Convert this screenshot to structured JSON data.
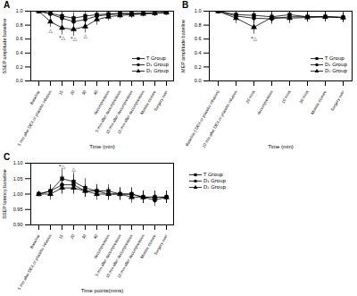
{
  "chart_data": [
    {
      "type": "line",
      "title": "A",
      "x_label": "Time (min)",
      "y_label": "SSEP amplitude baseline",
      "categories": [
        "Baseline",
        "5 min after DEX or placebo infusion",
        "15",
        "20",
        "30",
        "40",
        "decompression",
        "5 min after decompression",
        "10 min after decompression",
        "15 min after decompression",
        "Muscle closure",
        "Surgery over"
      ],
      "ylim": [
        0,
        1
      ],
      "yticks": [
        {
          "value": 0,
          "label": "0.0"
        },
        0.2,
        0.4,
        0.6,
        0.8,
        {
          "value": 1,
          "label": "1.0"
        }
      ],
      "grid": false,
      "legend": "lower right",
      "series": [
        {
          "name": "T Group",
          "color": "#000000",
          "marker": "square",
          "line_style": "solid",
          "values": [
            1.0,
            0.97,
            0.93,
            0.9,
            0.93,
            0.95,
            0.96,
            0.97,
            0.97,
            0.97,
            0.98,
            0.98
          ],
          "errors": [
            0,
            0.05,
            0.07,
            0.08,
            0.07,
            0.06,
            0.05,
            0.05,
            0.04,
            0.04,
            0.04,
            0.03
          ]
        },
        {
          "name": "D₁ Group",
          "color": "#000000",
          "marker": "circle",
          "line_style": "solid",
          "values": [
            1.0,
            0.96,
            0.9,
            0.85,
            0.88,
            0.93,
            0.95,
            0.96,
            0.96,
            0.97,
            0.97,
            0.98
          ],
          "errors": [
            0,
            0.06,
            0.08,
            0.09,
            0.08,
            0.06,
            0.05,
            0.05,
            0.05,
            0.04,
            0.04,
            0.03
          ]
        },
        {
          "name": "D₂ Group",
          "color": "#000000",
          "marker": "triangle",
          "line_style": "solid",
          "values": [
            1.0,
            0.85,
            0.76,
            0.74,
            0.78,
            0.88,
            0.92,
            0.94,
            0.95,
            0.96,
            0.97,
            0.98
          ],
          "errors": [
            0,
            0.08,
            0.1,
            0.1,
            0.09,
            0.08,
            0.06,
            0.05,
            0.05,
            0.04,
            0.04,
            0.03
          ]
        }
      ],
      "annotations": [
        {
          "category": "5 min after DEX or placebo infusion",
          "y": 0.72,
          "text": "△"
        },
        {
          "category": "15",
          "y": 0.62,
          "text": "*△"
        },
        {
          "category": "20",
          "y": 0.6,
          "text": "*△"
        },
        {
          "category": "30",
          "y": 0.65,
          "text": "△"
        }
      ]
    },
    {
      "type": "line",
      "title": "B",
      "x_label": "Time (min)",
      "y_label": "MEP amplitude baseline",
      "categories": [
        "Baseline ( DEX or placebo infusion)",
        "10 min after DEX or placebo infusion",
        "20 mins",
        "decompression",
        "10 mins",
        "30 mins",
        "Muscle closure",
        "Surgery over"
      ],
      "ylim": [
        0,
        1
      ],
      "yticks": [
        {
          "value": 0,
          "label": "0.0"
        },
        0.2,
        0.4,
        0.6,
        0.8,
        {
          "value": 1,
          "label": "1.0"
        }
      ],
      "grid": false,
      "legend": "lower right",
      "series": [
        {
          "name": "T Group",
          "color": "#000000",
          "marker": "square",
          "line_style": "solid",
          "values": [
            1.0,
            0.95,
            0.94,
            0.92,
            0.95,
            0.92,
            0.92,
            0.91
          ],
          "errors": [
            0,
            0.06,
            0.07,
            0.07,
            0.06,
            0.07,
            0.07,
            0.07
          ]
        },
        {
          "name": "D₁ Group",
          "color": "#000000",
          "marker": "circle",
          "line_style": "solid",
          "values": [
            1.0,
            0.93,
            0.9,
            0.89,
            0.92,
            0.92,
            0.92,
            0.91
          ],
          "errors": [
            0,
            0.07,
            0.08,
            0.08,
            0.07,
            0.07,
            0.07,
            0.07
          ]
        },
        {
          "name": "D₂ Group",
          "color": "#000000",
          "marker": "triangle",
          "line_style": "solid",
          "values": [
            1.0,
            0.9,
            0.77,
            0.91,
            0.9,
            0.91,
            0.92,
            0.91
          ],
          "errors": [
            0,
            0.08,
            0.1,
            0.08,
            0.08,
            0.07,
            0.07,
            0.07
          ]
        }
      ],
      "annotations": [
        {
          "category": "20 mins",
          "y": 0.61,
          "text": "*△"
        }
      ]
    },
    {
      "type": "line",
      "title": "C",
      "x_label": "Time points(mins)",
      "y_label": "SSEP latency baseline",
      "categories": [
        "Baseline",
        "5 min after DEX or placebo infusion",
        "15",
        "20",
        "30",
        "40",
        "decompression",
        "5 min after decompression",
        "10 min after decompression",
        "15 min after decompression",
        "Muscle closure",
        "Surgery over"
      ],
      "ylim": [
        0.9,
        1.1
      ],
      "yticks": [
        {
          "value": 0.9,
          "label": "0.90"
        },
        0.95,
        {
          "value": 1,
          "label": "1.00"
        },
        1.05,
        {
          "value": 1.1,
          "label": "1.10"
        }
      ],
      "grid": false,
      "legend": "right",
      "series": [
        {
          "name": "T Group",
          "color": "#000000",
          "marker": "square",
          "line_style": "solid",
          "values": [
            1.0,
            1.01,
            1.05,
            1.04,
            1.02,
            1.01,
            1.01,
            1.0,
            1.0,
            0.99,
            0.99,
            0.99
          ],
          "errors": [
            0,
            0.02,
            0.03,
            0.03,
            0.03,
            0.02,
            0.02,
            0.02,
            0.02,
            0.02,
            0.02,
            0.02
          ]
        },
        {
          "name": "D₁ Group",
          "color": "#000000",
          "marker": "circle",
          "line_style": "solid",
          "values": [
            1.0,
            1.01,
            1.03,
            1.03,
            1.01,
            1.01,
            1.0,
            1.0,
            1.0,
            0.99,
            0.98,
            0.99
          ],
          "errors": [
            0,
            0.02,
            0.03,
            0.03,
            0.02,
            0.02,
            0.02,
            0.02,
            0.02,
            0.02,
            0.02,
            0.02
          ]
        },
        {
          "name": "D₂ Group",
          "color": "#000000",
          "marker": "triangle",
          "line_style": "solid",
          "values": [
            1.0,
            1.0,
            1.02,
            1.02,
            1.01,
            1.0,
            1.0,
            1.0,
            0.99,
            0.99,
            0.99,
            0.99
          ],
          "errors": [
            0,
            0.02,
            0.02,
            0.02,
            0.02,
            0.02,
            0.02,
            0.02,
            0.02,
            0.02,
            0.02,
            0.02
          ]
        }
      ],
      "annotations": [
        {
          "category": "15",
          "y": 1.09,
          "text": "*△"
        },
        {
          "category": "20",
          "y": 1.08,
          "text": "△"
        }
      ]
    }
  ]
}
